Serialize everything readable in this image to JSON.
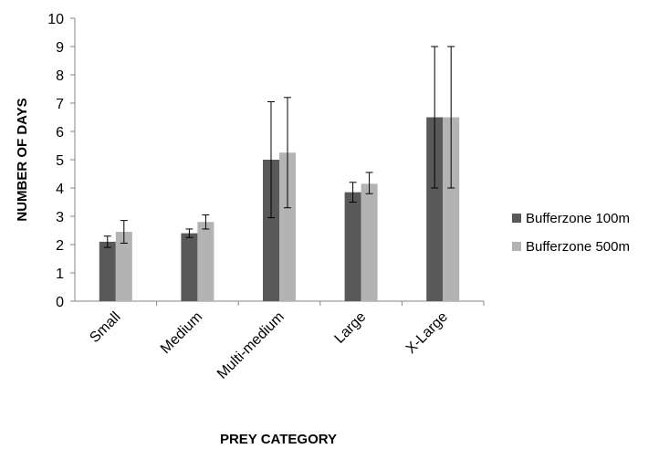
{
  "chart_data": {
    "type": "bar",
    "title": "",
    "xlabel": "PREY CATEGORY",
    "ylabel": "NUMBER OF DAYS",
    "ylim": [
      0,
      10
    ],
    "yticks": [
      0,
      1,
      2,
      3,
      4,
      5,
      6,
      7,
      8,
      9,
      10
    ],
    "categories": [
      "Small",
      "Medium",
      "Multi-medium",
      "Large",
      "X-Large"
    ],
    "series": [
      {
        "name": "Bufferzone 100m",
        "color": "#595959",
        "values": [
          2.1,
          2.4,
          5.0,
          3.85,
          6.5
        ],
        "error_low": [
          1.9,
          2.25,
          2.95,
          3.5,
          4.0
        ],
        "error_high": [
          2.3,
          2.55,
          7.05,
          4.2,
          9.0
        ]
      },
      {
        "name": "Bufferzone 500m",
        "color": "#b3b3b3",
        "values": [
          2.45,
          2.8,
          5.25,
          4.15,
          6.5
        ],
        "error_low": [
          2.05,
          2.55,
          3.3,
          3.8,
          4.0
        ],
        "error_high": [
          2.85,
          3.05,
          7.2,
          4.55,
          9.0
        ]
      }
    ],
    "grid": false,
    "legend_position": "right"
  }
}
